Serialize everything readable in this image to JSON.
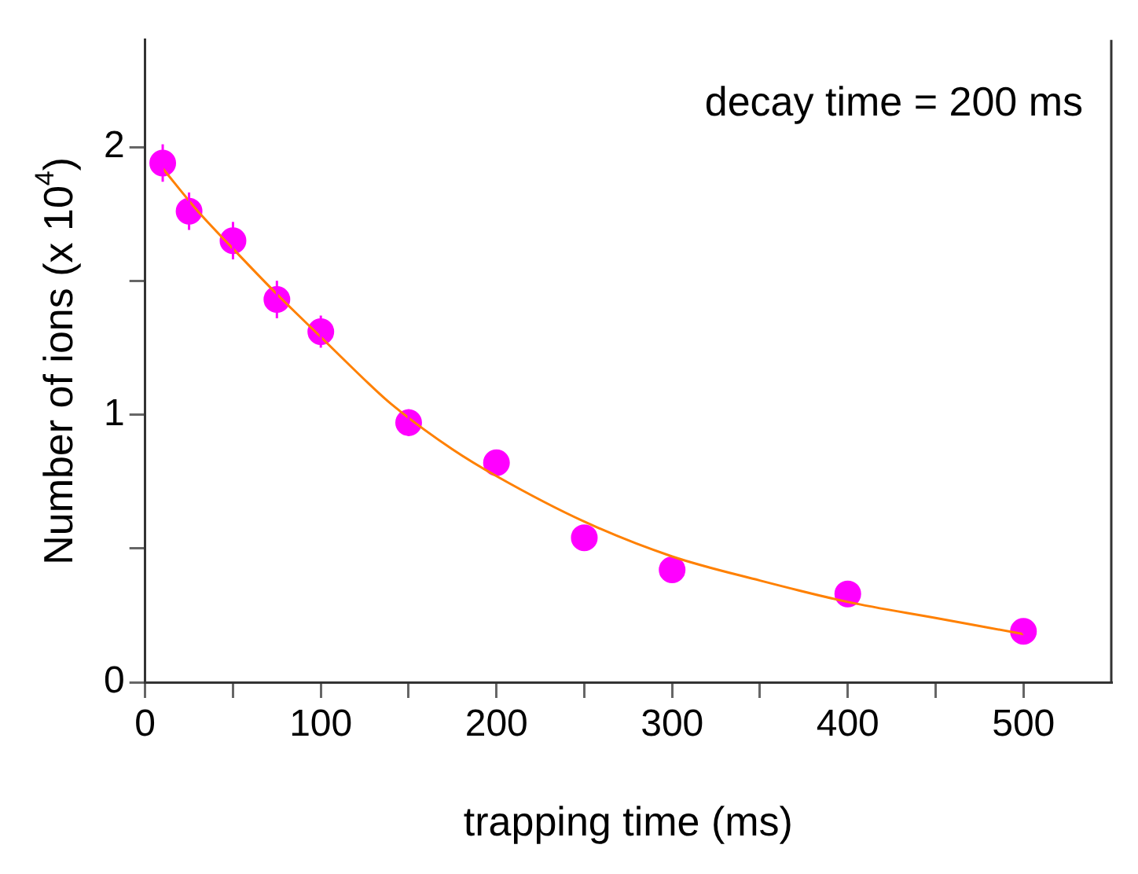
{
  "chart_data": {
    "type": "scatter",
    "xlabel": "trapping time (ms)",
    "ylabel": "Number of ions (x 10$^{4}$)",
    "annotations": [
      "decay time = 200 ms"
    ],
    "xlim": [
      0,
      550
    ],
    "xticks": [
      0,
      {
        "value": 50,
        "label": null
      },
      100,
      {
        "value": 150,
        "label": null
      },
      200,
      {
        "value": 250,
        "label": null
      },
      300,
      {
        "value": 350,
        "label": null
      },
      400,
      {
        "value": 450,
        "label": null
      },
      500
    ],
    "ylim": [
      0,
      2.4
    ],
    "yticks": [
      0,
      {
        "value": 0.5,
        "label": null
      },
      1,
      {
        "value": 1.5,
        "label": null
      },
      2
    ],
    "series": [
      {
        "color": "#ff00ff",
        "marker": "circle",
        "x": [
          10,
          25,
          50,
          75,
          100,
          150,
          200,
          250,
          300,
          400,
          500
        ],
        "values": [
          1.94,
          1.76,
          1.65,
          1.43,
          1.31,
          0.97,
          0.82,
          0.54,
          0.42,
          0.33,
          0.19
        ],
        "errors": [
          0.07,
          0.07,
          0.07,
          0.07,
          0.06,
          0.05,
          0.04,
          0.03,
          0.02,
          0.02,
          0.01
        ]
      },
      {
        "type": "line",
        "marker": "none",
        "color": "#ff8000",
        "x": [
          10,
          30,
          50,
          75,
          100,
          125,
          140,
          175,
          200,
          250,
          300,
          350,
          400,
          450,
          500
        ],
        "values": [
          1.92,
          1.76,
          1.62,
          1.45,
          1.29,
          1.13,
          1.04,
          0.87,
          0.77,
          0.6,
          0.47,
          0.38,
          0.3,
          0.24,
          0.18
        ]
      }
    ]
  }
}
